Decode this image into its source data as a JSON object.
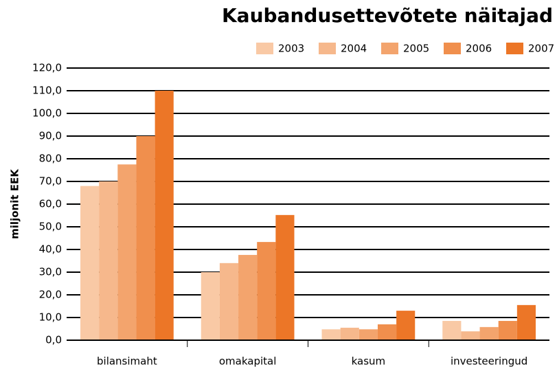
{
  "chart_data": {
    "type": "bar",
    "title": "Kaubandusettevõtete näitajad",
    "ylabel": "miljonit EEK",
    "categories": [
      "bilansimaht",
      "omakapital",
      "kasum",
      "investeeringud"
    ],
    "series": [
      {
        "name": "2003",
        "color": "#f9c9a5",
        "values": [
          68,
          30,
          4.8,
          8.5
        ]
      },
      {
        "name": "2004",
        "color": "#f6b88c",
        "values": [
          70,
          34,
          5.5,
          3.9
        ]
      },
      {
        "name": "2005",
        "color": "#f3a46d",
        "values": [
          77.5,
          37.6,
          4.8,
          5.8
        ]
      },
      {
        "name": "2006",
        "color": "#f08f4d",
        "values": [
          90,
          43.3,
          7,
          8.5
        ]
      },
      {
        "name": "2007",
        "color": "#ec7627",
        "values": [
          110,
          55.2,
          13,
          15.5
        ]
      }
    ],
    "ylim": [
      0,
      120
    ],
    "yticks": [
      {
        "value": 0,
        "label": "0,0"
      },
      {
        "value": 10,
        "label": "10,0"
      },
      {
        "value": 20,
        "label": "20,0"
      },
      {
        "value": 30,
        "label": "30,0"
      },
      {
        "value": 40,
        "label": "40,0"
      },
      {
        "value": 50,
        "label": "50,0"
      },
      {
        "value": 60,
        "label": "60,0"
      },
      {
        "value": 70,
        "label": "70,0"
      },
      {
        "value": 80,
        "label": "80,0"
      },
      {
        "value": 90,
        "label": "90,0"
      },
      {
        "value": 100,
        "label": "100,0"
      },
      {
        "value": 110,
        "label": "110,0"
      },
      {
        "value": 120,
        "label": "120,0"
      }
    ],
    "grid": true,
    "legend": "top-right"
  }
}
